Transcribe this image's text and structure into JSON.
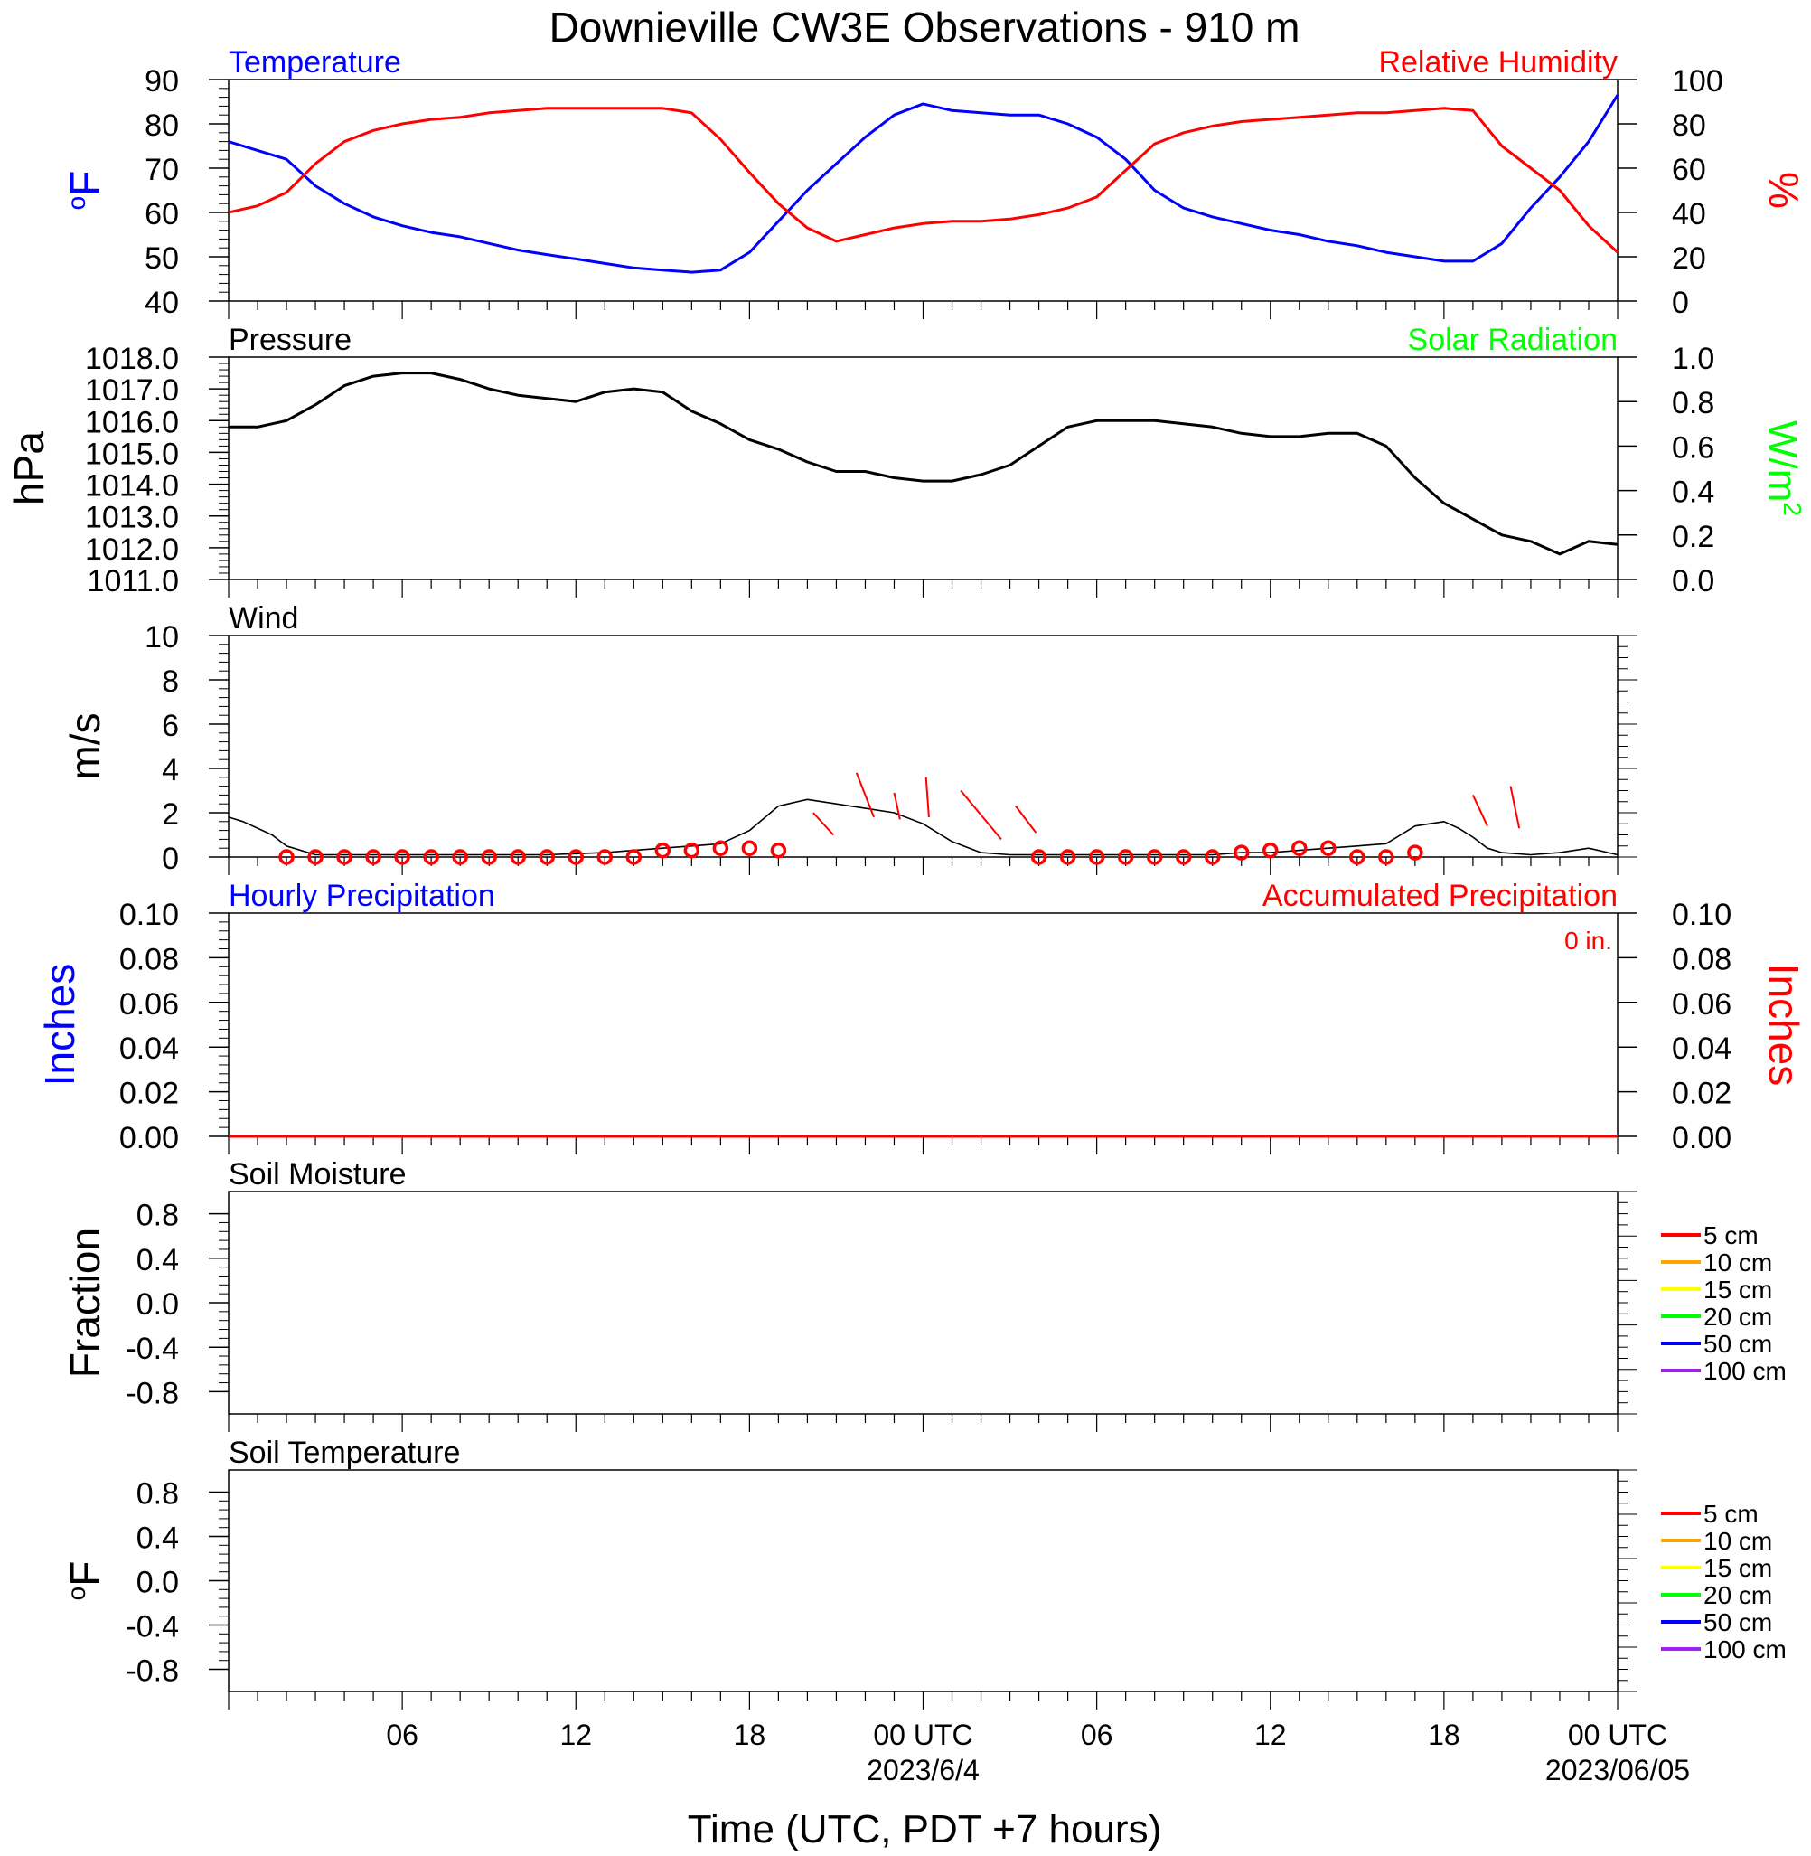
{
  "title": "Downieville CW3E Observations - 910 m",
  "xlabel": "Time (UTC, PDT +7 hours)",
  "x_ticks": [
    "06",
    "12",
    "18",
    "00 UTC",
    "06",
    "12",
    "18",
    "00 UTC"
  ],
  "x_dates": [
    "2023/6/4",
    "2023/06/05"
  ],
  "colors": {
    "temp": "#0000ff",
    "rh": "#ff0000",
    "pressure": "#000000",
    "solar": "#00ff00",
    "wind": "#000000",
    "gust": "#ff0000",
    "precip_hourly": "#0000ff",
    "precip_accum": "#ff0000"
  },
  "chart_data": [
    {
      "type": "line",
      "panel": "temperature_rh",
      "title_left": "Temperature",
      "title_right": "Relative Humidity",
      "ylabel_left": "°F",
      "ylabel_right": "%",
      "xlim_hours": [
        0,
        48
      ],
      "ylim_left": [
        40,
        90
      ],
      "ylim_right": [
        0,
        100
      ],
      "yticks_left": [
        "40",
        "50",
        "60",
        "70",
        "80",
        "90"
      ],
      "yticks_right": [
        "0",
        "20",
        "40",
        "60",
        "80",
        "100"
      ],
      "series": [
        {
          "name": "Temperature",
          "axis": "left",
          "x": [
            0,
            1,
            2,
            3,
            4,
            5,
            6,
            7,
            8,
            9,
            10,
            11,
            12,
            13,
            14,
            15,
            16,
            17,
            18,
            19,
            20,
            21,
            22,
            23,
            24,
            25,
            26,
            27,
            28,
            29,
            30,
            31,
            32,
            33,
            34,
            35,
            36,
            37,
            38,
            39,
            40,
            41,
            42,
            43,
            44,
            45,
            46,
            47,
            48
          ],
          "y": [
            76,
            74,
            72,
            66,
            62,
            59,
            57,
            55.5,
            54.5,
            53,
            51.5,
            50.5,
            49.5,
            48.5,
            47.5,
            47,
            46.5,
            47,
            51,
            58,
            65,
            71,
            77,
            82,
            84.5,
            83,
            82.5,
            82,
            82,
            80,
            77,
            72,
            65,
            61,
            59,
            57.5,
            56,
            55,
            53.5,
            52.5,
            51,
            50,
            49,
            49,
            53,
            61,
            68,
            76,
            86.5
          ]
        },
        {
          "name": "Relative Humidity",
          "axis": "right",
          "x": [
            0,
            1,
            2,
            3,
            4,
            5,
            6,
            7,
            8,
            9,
            10,
            11,
            12,
            13,
            14,
            15,
            16,
            17,
            18,
            19,
            20,
            21,
            22,
            23,
            24,
            25,
            26,
            27,
            28,
            29,
            30,
            31,
            32,
            33,
            34,
            35,
            36,
            37,
            38,
            39,
            40,
            41,
            42,
            43,
            44,
            45,
            46,
            47,
            48
          ],
          "y": [
            40,
            43,
            49,
            62,
            72,
            77,
            80,
            82,
            83,
            85,
            86,
            87,
            87,
            87,
            87,
            87,
            85,
            73,
            58,
            44,
            33,
            27,
            30,
            33,
            35,
            36,
            36,
            37,
            39,
            42,
            47,
            59,
            71,
            76,
            79,
            81,
            82,
            83,
            84,
            85,
            85,
            86,
            87,
            86,
            70,
            60,
            50,
            34,
            22
          ]
        }
      ]
    },
    {
      "type": "line",
      "panel": "pressure_solar",
      "title_left": "Pressure",
      "title_right": "Solar Radiation",
      "ylabel_left": "hPa",
      "ylabel_right": "W/m2",
      "ylim_left": [
        1011,
        1018
      ],
      "ylim_right": [
        0,
        1
      ],
      "yticks_left": [
        "1011.0",
        "1012.0",
        "1013.0",
        "1014.0",
        "1015.0",
        "1016.0",
        "1017.0",
        "1018.0"
      ],
      "yticks_right": [
        "0.0",
        "0.2",
        "0.4",
        "0.6",
        "0.8",
        "1.0"
      ],
      "series": [
        {
          "name": "Pressure",
          "axis": "left",
          "x": [
            0,
            1,
            2,
            3,
            4,
            5,
            6,
            7,
            8,
            9,
            10,
            11,
            12,
            13,
            14,
            15,
            16,
            17,
            18,
            19,
            20,
            21,
            22,
            23,
            24,
            25,
            26,
            27,
            28,
            29,
            30,
            31,
            32,
            33,
            34,
            35,
            36,
            37,
            38,
            39,
            40,
            41,
            42,
            43,
            44,
            45,
            46,
            47,
            48
          ],
          "y": [
            1015.8,
            1015.8,
            1016.0,
            1016.5,
            1017.1,
            1017.4,
            1017.5,
            1017.5,
            1017.3,
            1017.0,
            1016.8,
            1016.7,
            1016.6,
            1016.9,
            1017.0,
            1016.9,
            1016.3,
            1015.9,
            1015.4,
            1015.1,
            1014.7,
            1014.4,
            1014.4,
            1014.2,
            1014.1,
            1014.1,
            1014.3,
            1014.6,
            1015.2,
            1015.8,
            1016.0,
            1016.0,
            1016.0,
            1015.9,
            1015.8,
            1015.6,
            1015.5,
            1015.5,
            1015.6,
            1015.6,
            1015.2,
            1014.2,
            1013.4,
            1012.9,
            1012.4,
            1012.2,
            1011.8,
            1012.2,
            1012.1
          ]
        }
      ]
    },
    {
      "type": "line",
      "panel": "wind",
      "title_left": "Wind",
      "ylabel_left": "m/s",
      "ylim_left": [
        0,
        10
      ],
      "yticks_left": [
        "0",
        "2",
        "4",
        "6",
        "8",
        "10"
      ],
      "series": [
        {
          "name": "Wind Speed",
          "axis": "left",
          "x": [
            0,
            0.5,
            1,
            1.5,
            2,
            3,
            4,
            5,
            6,
            7,
            8,
            9,
            10,
            11,
            12,
            13,
            14,
            15,
            16,
            17,
            18,
            19,
            20,
            21,
            22,
            23,
            24,
            25,
            26,
            27,
            28,
            29,
            30,
            31,
            32,
            33,
            34,
            35,
            36,
            37,
            38,
            39,
            40,
            41,
            42,
            42.5,
            43,
            43.5,
            44,
            45,
            46,
            47,
            48
          ],
          "y": [
            1.8,
            1.6,
            1.3,
            1.0,
            0.5,
            0.1,
            0.1,
            0.1,
            0.1,
            0.1,
            0.1,
            0.1,
            0.1,
            0.1,
            0.15,
            0.2,
            0.3,
            0.4,
            0.5,
            0.6,
            1.2,
            2.3,
            2.6,
            2.4,
            2.2,
            2.0,
            1.5,
            0.7,
            0.2,
            0.1,
            0.1,
            0.1,
            0.1,
            0.1,
            0.1,
            0.1,
            0.1,
            0.2,
            0.2,
            0.3,
            0.4,
            0.5,
            0.6,
            1.4,
            1.6,
            1.3,
            0.9,
            0.4,
            0.2,
            0.1,
            0.2,
            0.4,
            0.1
          ]
        }
      ],
      "markers": {
        "x": [
          2,
          3,
          4,
          5,
          6,
          7,
          8,
          9,
          10,
          11,
          12,
          13,
          14,
          15,
          16,
          17,
          18,
          19,
          20,
          21,
          22,
          23,
          24,
          25,
          26,
          27,
          28,
          29,
          30,
          31,
          32,
          33,
          34,
          35,
          36,
          37,
          38,
          39,
          40,
          41
        ],
        "y": [
          0,
          0,
          0,
          0,
          0,
          0,
          0,
          0,
          0,
          0,
          0,
          0,
          0,
          0.3,
          0.3,
          0.4,
          0.4,
          0.3,
          0,
          0,
          0,
          0,
          0,
          0,
          0,
          0,
          0,
          0,
          0,
          0,
          0,
          0,
          0,
          0.2,
          0.3,
          0.4,
          0.4,
          0,
          0,
          0.2
        ],
        "x_hidden_range": [
          19,
          27.5
        ]
      },
      "gusts": [
        {
          "x": [
            20.2,
            20.9
          ],
          "y": [
            2.0,
            1.0
          ]
        },
        {
          "x": [
            21.7,
            22.3
          ],
          "y": [
            3.8,
            1.8
          ]
        },
        {
          "x": [
            23.0,
            23.2
          ],
          "y": [
            2.9,
            1.7
          ]
        },
        {
          "x": [
            24.1,
            24.2
          ],
          "y": [
            3.6,
            1.8
          ]
        },
        {
          "x": [
            25.3,
            26.7
          ],
          "y": [
            3.0,
            0.8
          ]
        },
        {
          "x": [
            27.2,
            27.9
          ],
          "y": [
            2.3,
            1.1
          ]
        },
        {
          "x": [
            43.0,
            43.5
          ],
          "y": [
            2.8,
            1.4
          ]
        },
        {
          "x": [
            44.3,
            44.6
          ],
          "y": [
            3.2,
            1.3
          ]
        }
      ]
    },
    {
      "type": "line",
      "panel": "precipitation",
      "title_left": "Hourly Precipitation",
      "title_right": "Accumulated Precipitation",
      "annotation": "0 in.",
      "ylabel_left": "Inches",
      "ylabel_right": "Inches",
      "ylim_left": [
        0,
        0.1
      ],
      "ylim_right": [
        0,
        0.1
      ],
      "yticks_left": [
        "0.00",
        "0.02",
        "0.04",
        "0.06",
        "0.08",
        "0.10"
      ],
      "yticks_right": [
        "0.00",
        "0.02",
        "0.04",
        "0.06",
        "0.08",
        "0.10"
      ],
      "series": [
        {
          "name": "Accumulated Precipitation",
          "axis": "right",
          "x": [
            0,
            48
          ],
          "y": [
            0,
            0
          ]
        }
      ]
    },
    {
      "type": "line",
      "panel": "soil_moisture",
      "title_left": "Soil Moisture",
      "ylabel_left": "Fraction",
      "ylim_left": [
        -1,
        1
      ],
      "yticks_left": [
        "-0.8",
        "-0.4",
        "0.0",
        "0.4",
        "0.8"
      ],
      "legend": [
        {
          "label": "5 cm",
          "color": "#ff0000"
        },
        {
          "label": "10 cm",
          "color": "#ffa500"
        },
        {
          "label": "15 cm",
          "color": "#ffff00"
        },
        {
          "label": "20 cm",
          "color": "#00ff00"
        },
        {
          "label": "50 cm",
          "color": "#0000ff"
        },
        {
          "label": "100 cm",
          "color": "#a020f0"
        }
      ],
      "series": []
    },
    {
      "type": "line",
      "panel": "soil_temperature",
      "title_left": "Soil Temperature",
      "ylabel_left": "°F",
      "ylim_left": [
        -1,
        1
      ],
      "yticks_left": [
        "-0.8",
        "-0.4",
        "0.0",
        "0.4",
        "0.8"
      ],
      "legend": [
        {
          "label": "5 cm",
          "color": "#ff0000"
        },
        {
          "label": "10 cm",
          "color": "#ffa500"
        },
        {
          "label": "15 cm",
          "color": "#ffff00"
        },
        {
          "label": "20 cm",
          "color": "#00ff00"
        },
        {
          "label": "50 cm",
          "color": "#0000ff"
        },
        {
          "label": "100 cm",
          "color": "#a020f0"
        }
      ],
      "series": []
    }
  ]
}
